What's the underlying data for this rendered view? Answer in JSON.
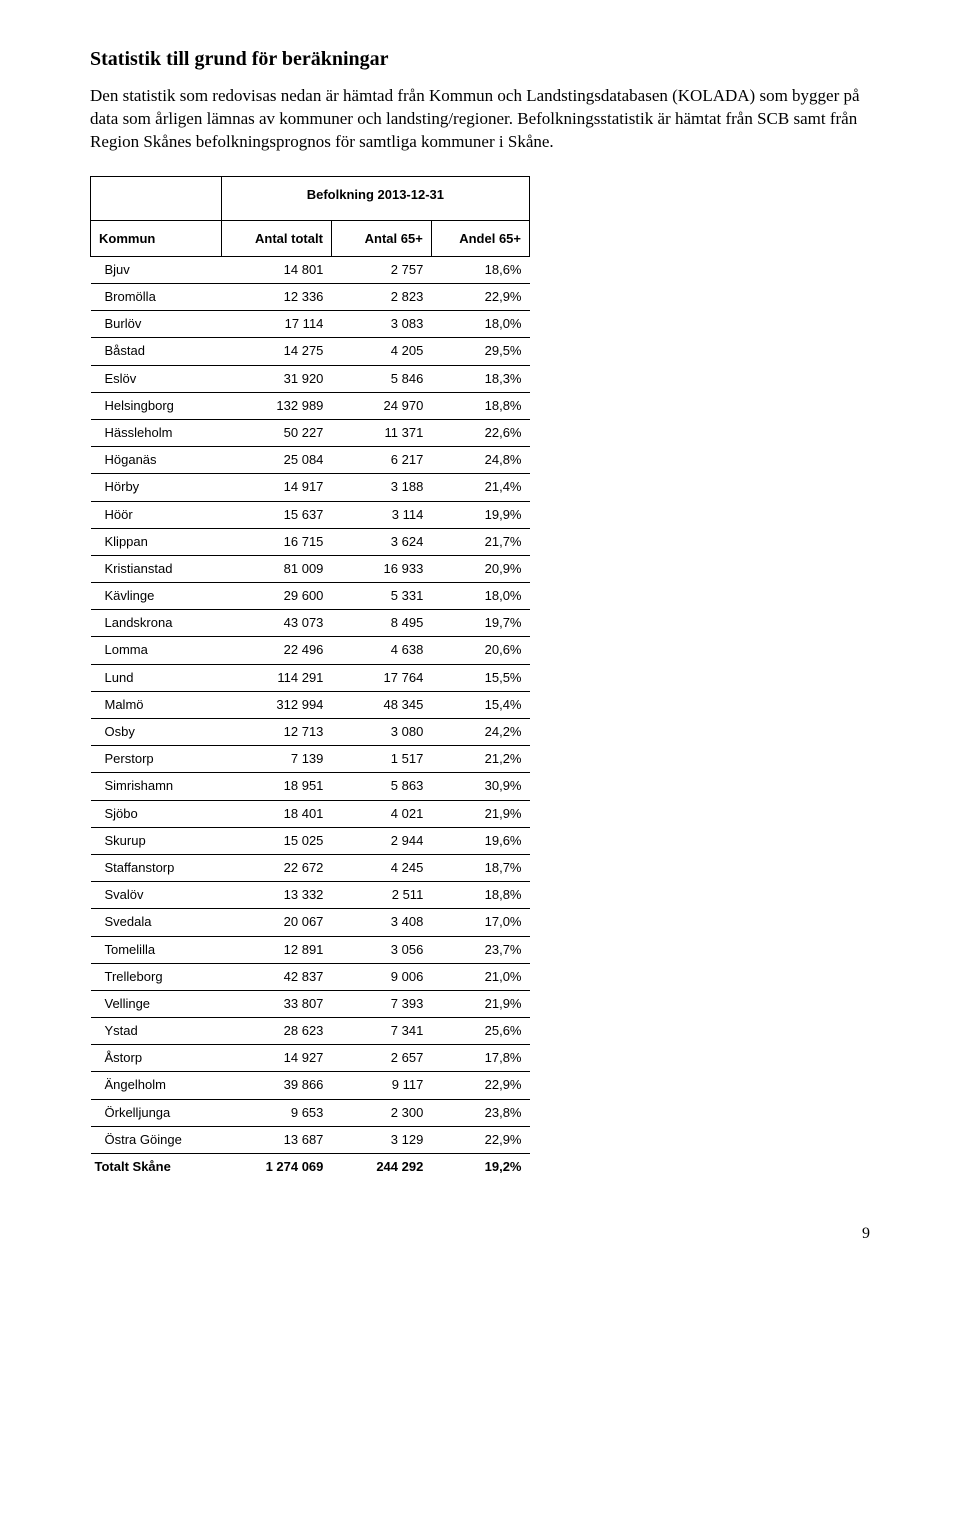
{
  "heading": "Statistik till grund för beräkningar",
  "intro": "Den statistik som redovisas nedan är hämtad från Kommun och Landstingsdatabasen (KOLADA) som bygger på data som årligen lämnas av kommuner och landsting/regioner. Befolkningsstatistik är hämtat från SCB samt från Region Skånes befolkningsprognos för samtliga kommuner i Skåne.",
  "table": {
    "title": "Befolkning 2013-12-31",
    "columns": [
      "Kommun",
      "Antal totalt",
      "Antal 65+",
      "Andel 65+"
    ],
    "rows": [
      [
        "Bjuv",
        "14 801",
        "2 757",
        "18,6%"
      ],
      [
        "Bromölla",
        "12 336",
        "2 823",
        "22,9%"
      ],
      [
        "Burlöv",
        "17 114",
        "3 083",
        "18,0%"
      ],
      [
        "Båstad",
        "14 275",
        "4 205",
        "29,5%"
      ],
      [
        "Eslöv",
        "31 920",
        "5 846",
        "18,3%"
      ],
      [
        "Helsingborg",
        "132 989",
        "24 970",
        "18,8%"
      ],
      [
        "Hässleholm",
        "50 227",
        "11 371",
        "22,6%"
      ],
      [
        "Höganäs",
        "25 084",
        "6 217",
        "24,8%"
      ],
      [
        "Hörby",
        "14 917",
        "3 188",
        "21,4%"
      ],
      [
        "Höör",
        "15 637",
        "3 114",
        "19,9%"
      ],
      [
        "Klippan",
        "16 715",
        "3 624",
        "21,7%"
      ],
      [
        "Kristianstad",
        "81 009",
        "16 933",
        "20,9%"
      ],
      [
        "Kävlinge",
        "29 600",
        "5 331",
        "18,0%"
      ],
      [
        "Landskrona",
        "43 073",
        "8 495",
        "19,7%"
      ],
      [
        "Lomma",
        "22 496",
        "4 638",
        "20,6%"
      ],
      [
        "Lund",
        "114 291",
        "17 764",
        "15,5%"
      ],
      [
        "Malmö",
        "312 994",
        "48 345",
        "15,4%"
      ],
      [
        "Osby",
        "12 713",
        "3 080",
        "24,2%"
      ],
      [
        "Perstorp",
        "7 139",
        "1 517",
        "21,2%"
      ],
      [
        "Simrishamn",
        "18 951",
        "5 863",
        "30,9%"
      ],
      [
        "Sjöbo",
        "18 401",
        "4 021",
        "21,9%"
      ],
      [
        "Skurup",
        "15 025",
        "2 944",
        "19,6%"
      ],
      [
        "Staffanstorp",
        "22 672",
        "4 245",
        "18,7%"
      ],
      [
        "Svalöv",
        "13 332",
        "2 511",
        "18,8%"
      ],
      [
        "Svedala",
        "20 067",
        "3 408",
        "17,0%"
      ],
      [
        "Tomelilla",
        "12 891",
        "3 056",
        "23,7%"
      ],
      [
        "Trelleborg",
        "42 837",
        "9 006",
        "21,0%"
      ],
      [
        "Vellinge",
        "33 807",
        "7 393",
        "21,9%"
      ],
      [
        "Ystad",
        "28 623",
        "7 341",
        "25,6%"
      ],
      [
        "Åstorp",
        "14 927",
        "2 657",
        "17,8%"
      ],
      [
        "Ängelholm",
        "39 866",
        "9 117",
        "22,9%"
      ],
      [
        "Örkelljunga",
        "9 653",
        "2 300",
        "23,8%"
      ],
      [
        "Östra Göinge",
        "13 687",
        "3 129",
        "22,9%"
      ]
    ],
    "total": [
      "Totalt Skåne",
      "1 274 069",
      "244 292",
      "19,2%"
    ]
  },
  "page_number": "9"
}
